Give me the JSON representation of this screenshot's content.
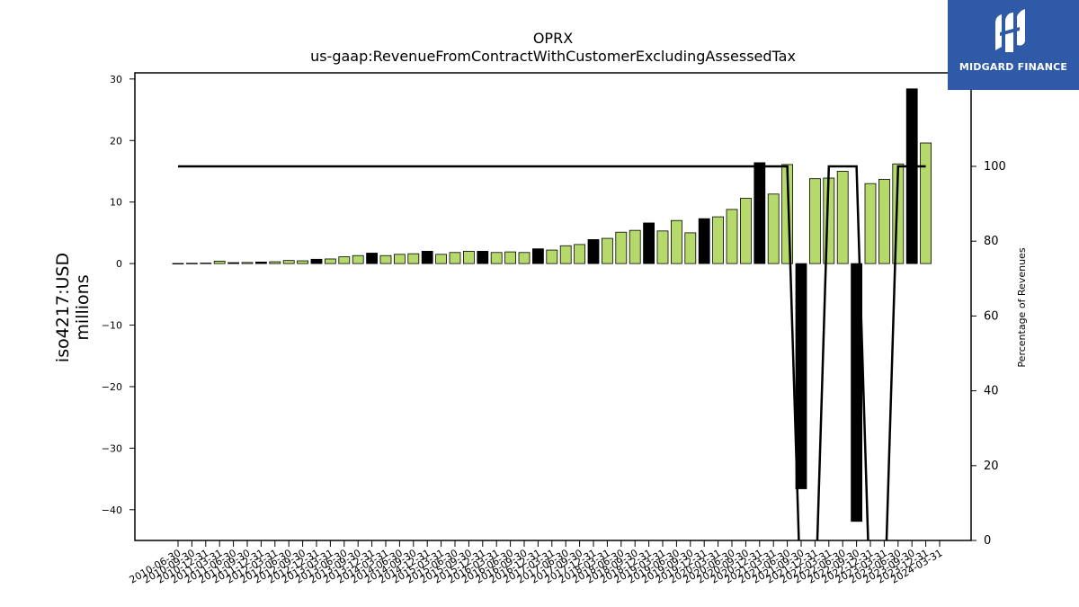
{
  "chart_data": {
    "type": "bar",
    "title": "OPRX",
    "subtitle": "us-gaap:RevenueFromContractWithCustomerExcludingAssessedTax",
    "ylabel": "iso4217:USD",
    "ylabel_unit": "millions",
    "y2label": "Percentage of Revenues",
    "ylim": [
      -45,
      31
    ],
    "y2lim": [
      0,
      125
    ],
    "yticks": [
      -40,
      -30,
      -20,
      -10,
      0,
      10,
      20,
      30
    ],
    "y2ticks": [
      0,
      20,
      40,
      60,
      80,
      100
    ],
    "grid": false,
    "colors": {
      "quarterly": "#b5d96a",
      "annual": "#000000",
      "line": "#000000"
    },
    "categories": [
      "2010-06-30",
      "2010-09-30",
      "2010-12-31",
      "2011-03-31",
      "2011-06-30",
      "2011-09-30",
      "2011-12-31",
      "2012-03-31",
      "2012-06-30",
      "2012-09-30",
      "2012-12-31",
      "2013-03-31",
      "2013-06-30",
      "2013-09-30",
      "2013-12-31",
      "2014-03-31",
      "2014-06-30",
      "2014-09-30",
      "2014-12-31",
      "2015-03-31",
      "2015-06-30",
      "2015-09-30",
      "2015-12-31",
      "2016-03-31",
      "2016-06-30",
      "2016-09-30",
      "2016-12-31",
      "2017-03-31",
      "2017-06-30",
      "2017-09-30",
      "2017-12-31",
      "2018-03-31",
      "2018-06-30",
      "2018-09-30",
      "2018-12-31",
      "2019-03-31",
      "2019-06-30",
      "2019-09-30",
      "2019-12-31",
      "2020-03-31",
      "2020-06-30",
      "2020-09-30",
      "2020-12-31",
      "2021-03-31",
      "2021-06-30",
      "2021-09-30",
      "2021-12-31",
      "2022-03-31",
      "2022-06-30",
      "2022-09-30",
      "2022-12-31",
      "2023-03-31",
      "2023-06-30",
      "2023-09-30",
      "2023-12-31",
      "2024-03-31"
    ],
    "series": [
      {
        "kind": "bar",
        "values": [
          0.02,
          0.05,
          0.08,
          0.4,
          0.15,
          0.18,
          0.25,
          0.3,
          0.5,
          0.45,
          0.7,
          0.75,
          1.1,
          1.3,
          1.7,
          1.3,
          1.5,
          1.6,
          2.0,
          1.5,
          1.8,
          2.0,
          2.0,
          1.8,
          1.9,
          1.8,
          2.4,
          2.2,
          2.9,
          3.1,
          3.9,
          4.1,
          5.1,
          5.4,
          6.6,
          5.3,
          7.0,
          5.0,
          7.3,
          7.6,
          8.8,
          10.6,
          16.4,
          11.3,
          16.1,
          -36.6,
          13.8,
          13.9,
          15.0,
          -41.9,
          13.0,
          13.7,
          16.2,
          28.4,
          19.6,
          0
        ]
      },
      {
        "kind": "line",
        "axis": "right",
        "values": [
          100,
          100,
          100,
          100,
          100,
          100,
          100,
          100,
          100,
          100,
          100,
          100,
          100,
          100,
          100,
          100,
          100,
          100,
          100,
          100,
          100,
          100,
          100,
          100,
          100,
          100,
          100,
          100,
          100,
          100,
          100,
          100,
          100,
          100,
          100,
          100,
          100,
          100,
          100,
          100,
          100,
          100,
          100,
          100,
          100,
          -20,
          -20,
          100,
          100,
          100,
          -20,
          -20,
          100,
          100,
          100,
          100
        ]
      }
    ],
    "bar_kinds": [
      "q",
      "q",
      "q",
      "q",
      "a",
      "q",
      "a",
      "q",
      "q",
      "q",
      "a",
      "q",
      "q",
      "q",
      "a",
      "q",
      "q",
      "q",
      "a",
      "q",
      "q",
      "q",
      "a",
      "q",
      "q",
      "q",
      "a",
      "q",
      "q",
      "q",
      "a",
      "q",
      "q",
      "q",
      "a",
      "q",
      "q",
      "q",
      "a",
      "q",
      "q",
      "q",
      "a",
      "q",
      "q",
      "a",
      "q",
      "q",
      "q",
      "a",
      "q",
      "q",
      "q",
      "a",
      "q",
      "q"
    ]
  },
  "logo": {
    "text": "MIDGARD FINANCE"
  }
}
